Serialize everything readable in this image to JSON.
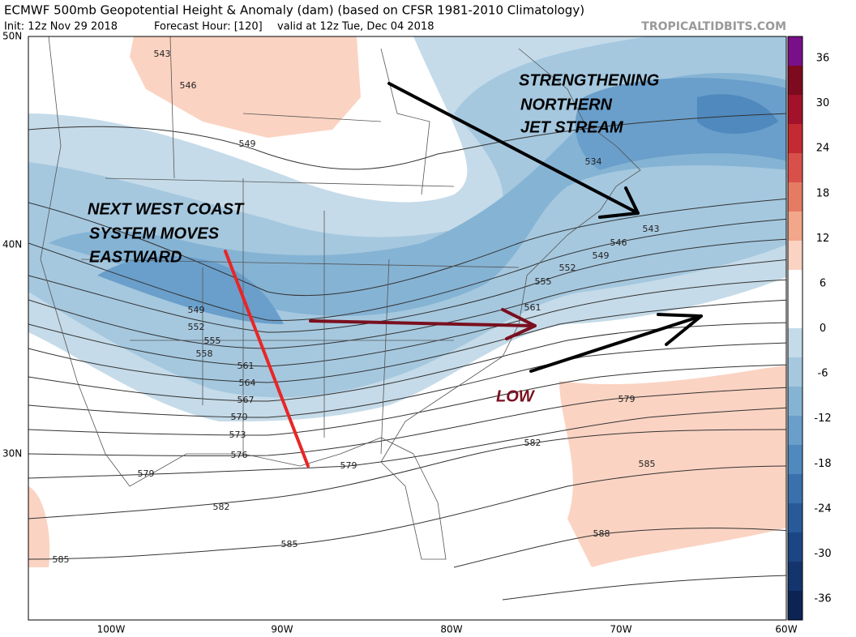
{
  "header": {
    "title": "ECMWF 500mb Geopotential Height & Anomaly (dam) (based on CFSR 1981-2010 Climatology)",
    "init": "Init: 12z Nov 29 2018",
    "forecast_hour": "Forecast Hour: [120]",
    "valid": "valid at 12z Tue, Dec 04 2018",
    "credit": "TROPICALTIDBITS.COM"
  },
  "map": {
    "lat_labels": [
      "50N",
      "40N",
      "30N"
    ],
    "lon_labels": [
      "100W",
      "90W",
      "80W",
      "70W",
      "60W"
    ],
    "contour_labels": [
      "543",
      "546",
      "549",
      "534",
      "543",
      "546",
      "549",
      "552",
      "555",
      "561",
      "549",
      "552",
      "555",
      "558",
      "561",
      "564",
      "567",
      "570",
      "573",
      "576",
      "579",
      "579",
      "579",
      "582",
      "582",
      "585",
      "585",
      "585",
      "588"
    ],
    "annotations": {
      "northern": [
        "STRENGTHENING",
        "NORTHERN",
        "JET STREAM"
      ],
      "west": [
        "NEXT WEST COAST",
        "SYSTEM MOVES",
        "EASTWARD"
      ],
      "low": "LOW"
    }
  },
  "colorbar": {
    "ticks": [
      "36",
      "30",
      "24",
      "18",
      "12",
      "6",
      "0",
      "-6",
      "-12",
      "-18",
      "-24",
      "-30",
      "-36"
    ],
    "colors": [
      "#7a0f8a",
      "#7d0a1e",
      "#a3122a",
      "#c42a31",
      "#d9504a",
      "#e67b64",
      "#f2a68a",
      "#fbd3c2",
      "#ffffff",
      "#ffffff",
      "#c5dbe9",
      "#a5c8df",
      "#85b3d4",
      "#6a9fcb",
      "#4f89be",
      "#3a71ad",
      "#285a99",
      "#1c4683",
      "#13346c",
      "#0c2454"
    ]
  }
}
